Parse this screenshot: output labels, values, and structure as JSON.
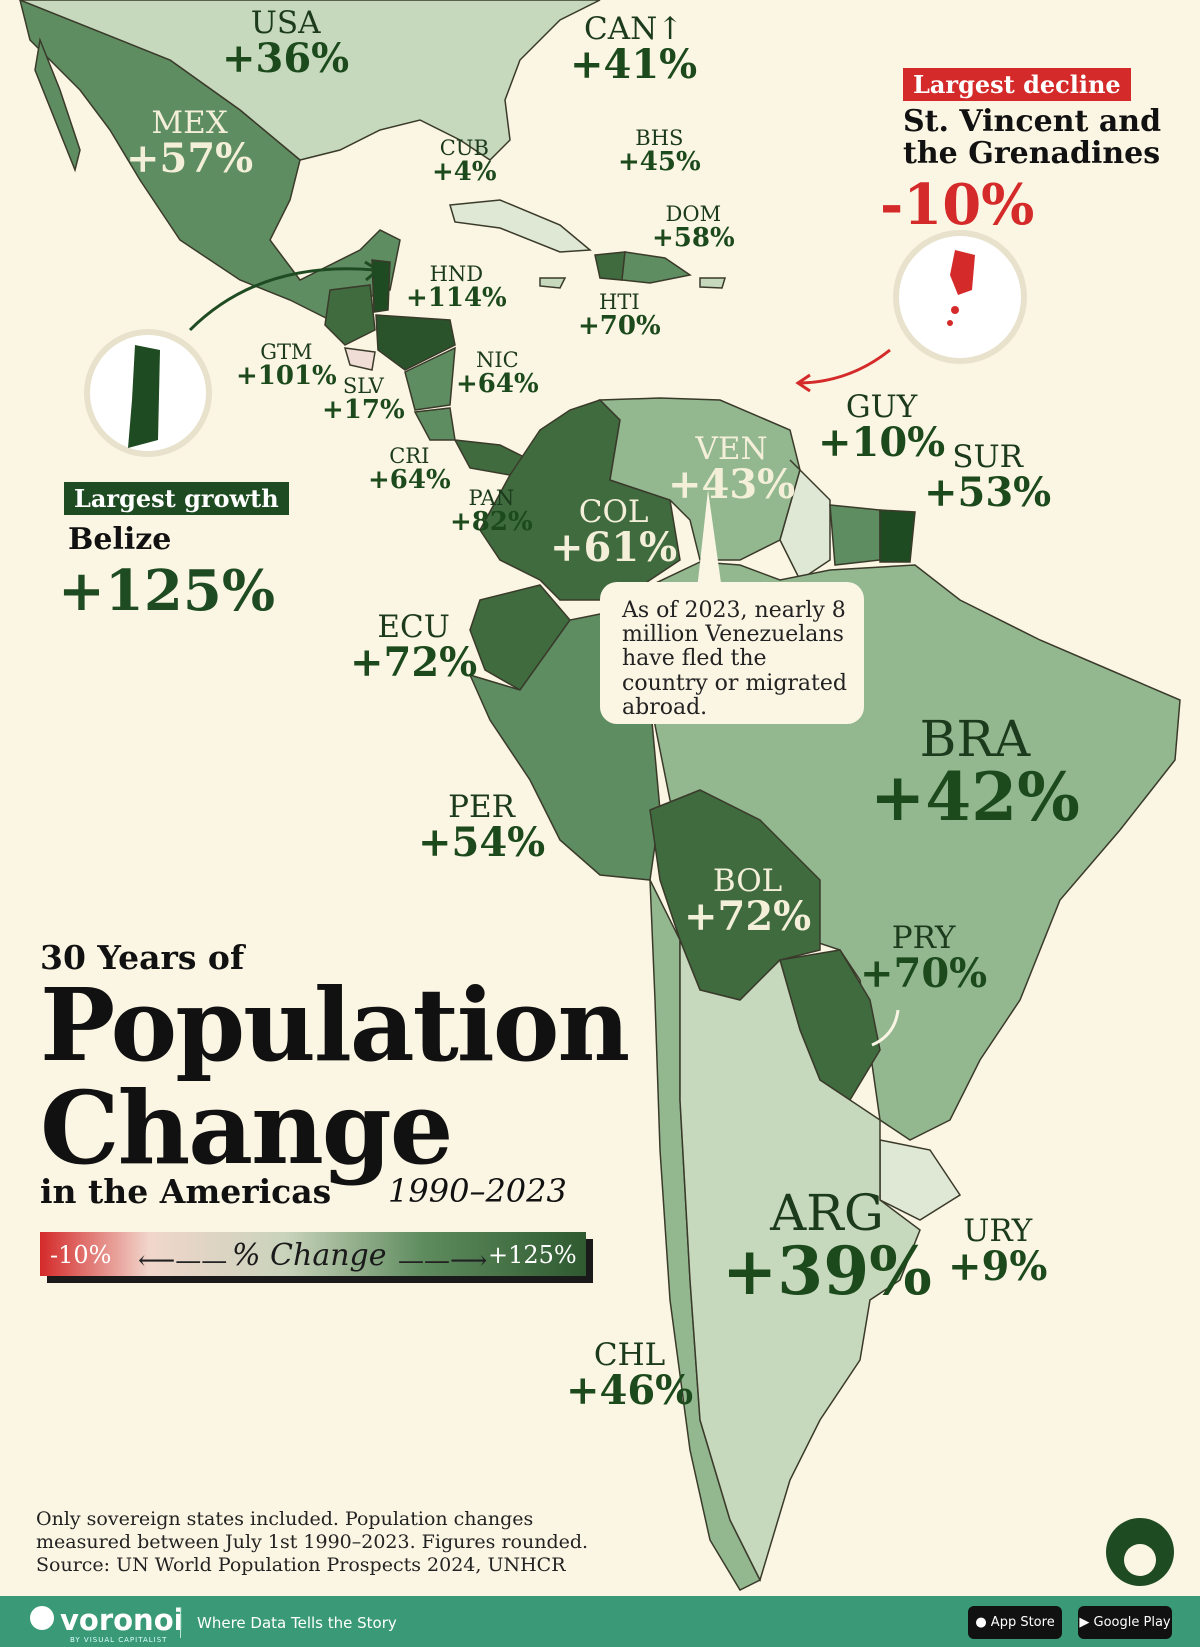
{
  "title": {
    "pre": "30 Years of",
    "main_line1": "Population",
    "main_line2": "Change",
    "sub": "in the Americas",
    "years": "1990–2023"
  },
  "legend": {
    "min": "-10%",
    "max": "+125%",
    "label": "% Change"
  },
  "colors": {
    "decline": "#d42a2a",
    "low": "#c7d9bd",
    "mid": "#93b890",
    "high": "#5f8d62",
    "top": "#1f4b22",
    "background": "#fbf5e3"
  },
  "highlights": {
    "growth": {
      "tag": "Largest growth",
      "name": "Belize",
      "value": "+125%"
    },
    "decline": {
      "tag": "Largest decline",
      "name_line1": "St. Vincent and",
      "name_line2": "the Grenadines",
      "value": "-10%"
    }
  },
  "countries": {
    "usa": {
      "code": "USA",
      "value": "+36%"
    },
    "can": {
      "code": "CAN↑",
      "value": "+41%"
    },
    "mex": {
      "code": "MEX",
      "value": "+57%"
    },
    "cub": {
      "code": "CUB",
      "value": "+4%"
    },
    "bhs": {
      "code": "BHS",
      "value": "+45%"
    },
    "dom": {
      "code": "DOM",
      "value": "+58%"
    },
    "hnd": {
      "code": "HND",
      "value": "+114%"
    },
    "hti": {
      "code": "HTI",
      "value": "+70%"
    },
    "gtm": {
      "code": "GTM",
      "value": "+101%"
    },
    "slv": {
      "code": "SLV",
      "value": "+17%"
    },
    "nic": {
      "code": "NIC",
      "value": "+64%"
    },
    "cri": {
      "code": "CRI",
      "value": "+64%"
    },
    "pan": {
      "code": "PAN",
      "value": "+82%"
    },
    "guy": {
      "code": "GUY",
      "value": "+10%"
    },
    "sur": {
      "code": "SUR",
      "value": "+53%"
    },
    "ven": {
      "code": "VEN",
      "value": "+43%"
    },
    "col": {
      "code": "COL",
      "value": "+61%"
    },
    "ecu": {
      "code": "ECU",
      "value": "+72%"
    },
    "bra": {
      "code": "BRA",
      "value": "+42%"
    },
    "per": {
      "code": "PER",
      "value": "+54%"
    },
    "bol": {
      "code": "BOL",
      "value": "+72%"
    },
    "pry": {
      "code": "PRY",
      "value": "+70%"
    },
    "arg": {
      "code": "ARG",
      "value": "+39%"
    },
    "ury": {
      "code": "URY",
      "value": "+9%"
    },
    "chl": {
      "code": "CHL",
      "value": "+46%"
    }
  },
  "callout": "As of 2023, nearly 8 million Venezuelans have fled the country or migrated abroad.",
  "footnote": {
    "line1": "Only sovereign states included. Population changes",
    "line2": "measured between July 1st 1990–2023. Figures rounded.",
    "line3": "Source: UN World Population Prospects 2024, UNHCR"
  },
  "footer": {
    "brand": "voronoi",
    "brand_sub": "BY VISUAL CAPITALIST",
    "tagline": "Where Data Tells the Story",
    "app_store": "App Store",
    "google_play": "Google Play"
  }
}
